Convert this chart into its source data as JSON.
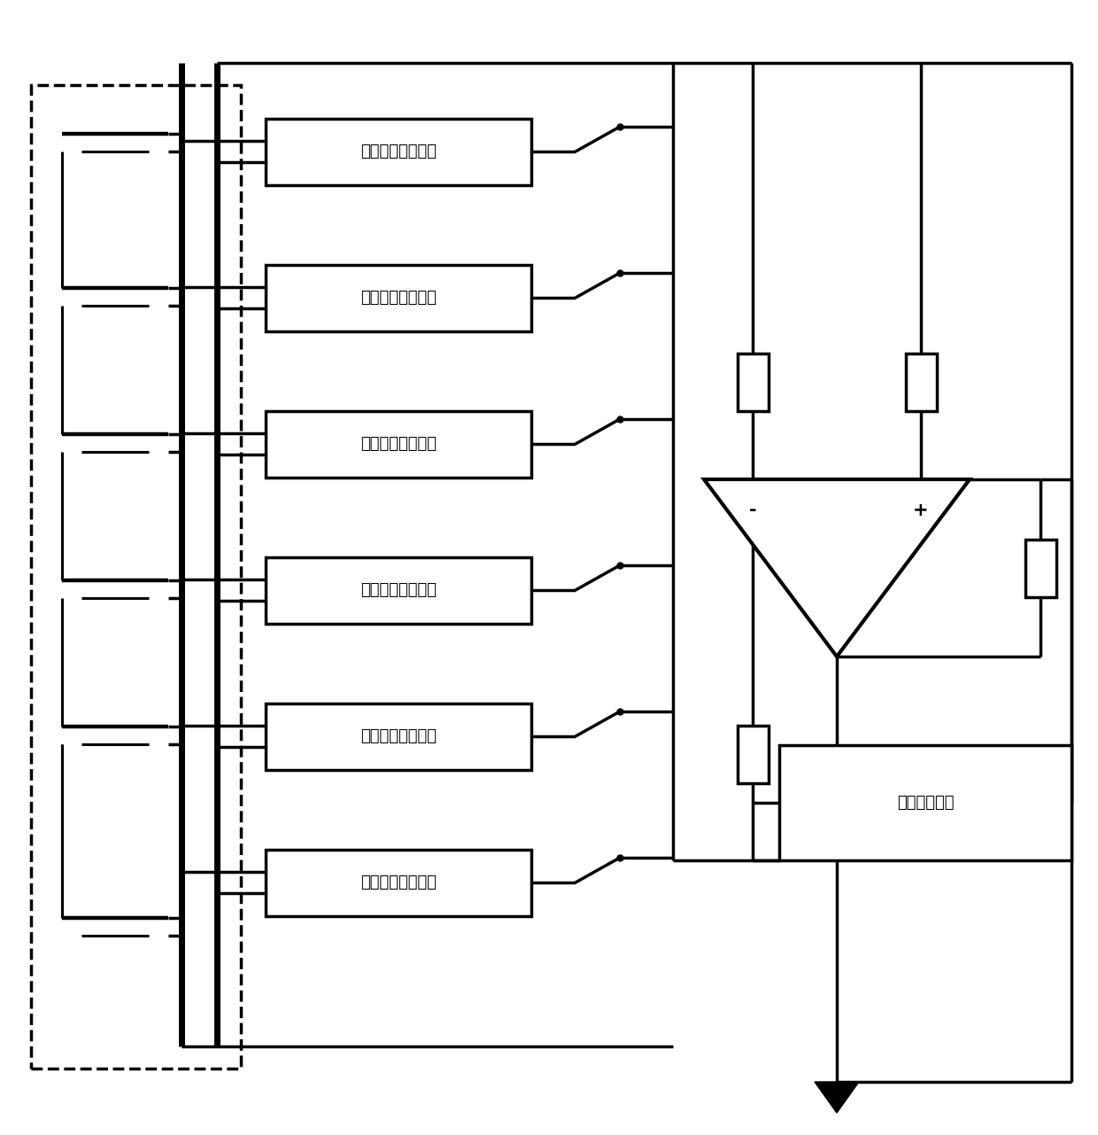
{
  "bg_color": "#ffffff",
  "line_color": "#000000",
  "lw": 2.5,
  "tlw": 5.0,
  "box_labels": [
    "第六电压输出单元",
    "第五电压输出单元",
    "第四电压输出单元",
    "第三电压输出单元",
    "第二电压输出单元",
    "第一电压输出单元"
  ],
  "sampling_label": "电压采样单元",
  "amp_neg": "-",
  "amp_pos": "+",
  "font_size": 13,
  "font_family": "SimHei"
}
